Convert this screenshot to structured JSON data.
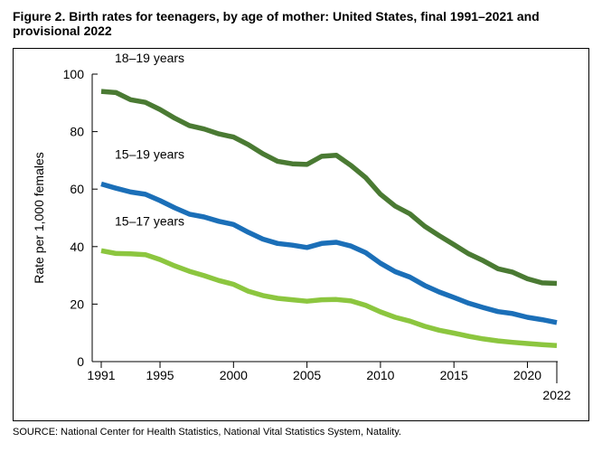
{
  "figure": {
    "title": "Figure 2. Birth rates for teenagers, by age of mother: United States, final 1991–2021 and provisional 2022",
    "source": "SOURCE: National Center for Health Statistics, National Vital Statistics System, Natality."
  },
  "chart_data": {
    "type": "line",
    "ylabel": "Rate per 1,000 females",
    "xlabel": "",
    "ylim": [
      0,
      100
    ],
    "xlim": [
      1991,
      2022
    ],
    "y_ticks": [
      0,
      20,
      40,
      60,
      80,
      100
    ],
    "x_ticks": [
      1991,
      1995,
      2000,
      2005,
      2010,
      2015,
      2020,
      2022
    ],
    "grid": false,
    "x": [
      1991,
      1992,
      1993,
      1994,
      1995,
      1996,
      1997,
      1998,
      1999,
      2000,
      2001,
      2002,
      2003,
      2004,
      2005,
      2006,
      2007,
      2008,
      2009,
      2010,
      2011,
      2012,
      2013,
      2014,
      2015,
      2016,
      2017,
      2018,
      2019,
      2020,
      2021,
      2022
    ],
    "series": [
      {
        "name": "18–19 years",
        "color": "#4a7a33",
        "values": [
          94.0,
          93.6,
          91.1,
          90.2,
          87.7,
          84.7,
          82.1,
          80.9,
          79.2,
          78.1,
          75.5,
          72.3,
          69.7,
          68.8,
          68.6,
          71.4,
          71.8,
          68.2,
          64.0,
          58.2,
          54.1,
          51.4,
          47.1,
          43.8,
          40.7,
          37.5,
          35.1,
          32.3,
          31.1,
          28.8,
          27.4,
          27.2
        ]
      },
      {
        "name": "15–19 years",
        "color": "#1b6fb8",
        "values": [
          61.8,
          60.3,
          59.0,
          58.2,
          56.0,
          53.5,
          51.3,
          50.3,
          48.8,
          47.7,
          45.0,
          42.6,
          41.1,
          40.5,
          39.7,
          41.1,
          41.5,
          40.2,
          37.9,
          34.2,
          31.3,
          29.4,
          26.5,
          24.2,
          22.3,
          20.3,
          18.8,
          17.4,
          16.7,
          15.4,
          14.6,
          13.6
        ]
      },
      {
        "name": "15–17 years",
        "color": "#8cc63f",
        "values": [
          38.6,
          37.6,
          37.5,
          37.2,
          35.5,
          33.3,
          31.4,
          29.9,
          28.2,
          26.9,
          24.5,
          23.0,
          22.0,
          21.5,
          21.0,
          21.5,
          21.6,
          21.1,
          19.6,
          17.3,
          15.4,
          14.1,
          12.3,
          10.9,
          9.9,
          8.8,
          7.9,
          7.2,
          6.7,
          6.3,
          5.9,
          5.6
        ]
      }
    ]
  }
}
